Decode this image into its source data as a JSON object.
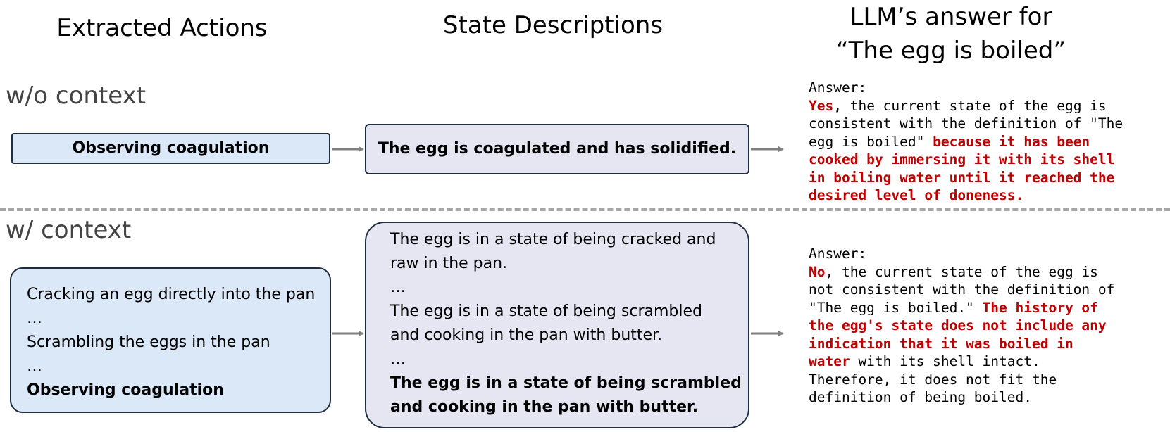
{
  "headers": {
    "actions": "Extracted Actions",
    "states": "State Descriptions",
    "answer_line1": "LLM’s answer for",
    "answer_line2": "“The egg is boiled”"
  },
  "rows": {
    "without_context": {
      "label": "w/o context",
      "action": "Observing coagulation",
      "state": "The egg is coagulated and has solidified.",
      "answer": {
        "prefix": "Answer:",
        "verdict": "Yes",
        "text1": ", the current state of the egg is\nconsistent with the definition of \"The\negg is boiled\" ",
        "reason": "because it has been\ncooked by immersing it with its shell\nin boiling water until it reached the\ndesired level of doneness."
      }
    },
    "with_context": {
      "label": "w/ context",
      "actions": [
        "Cracking an egg directly into the pan",
        "…",
        "Scrambling the eggs in the pan",
        "…",
        "Observing coagulation"
      ],
      "states": [
        "The egg is in a state of being cracked and",
        "raw in the pan.",
        "…",
        "The egg is in a state of being scrambled",
        "and cooking in the pan with butter.",
        "…",
        "The egg is in a state of being scrambled",
        "and cooking in the pan with butter."
      ],
      "answer": {
        "prefix": "Answer:",
        "verdict": "No",
        "text1": ", the current state of the egg is\nnot consistent with the definition of\n\"The egg is boiled.\" ",
        "reason": "The history of\nthe egg's state does not include any\nindication that it was boiled in\nwater",
        "text2": " with its shell intact.\nTherefore, it does not fit the\ndefinition of being boiled."
      }
    }
  },
  "colors": {
    "action_box": "#dae8f7",
    "state_box": "#e6e6f3",
    "highlight": "#c00000",
    "arrow": "#7f7f7f",
    "divider": "#a6a6a6"
  }
}
